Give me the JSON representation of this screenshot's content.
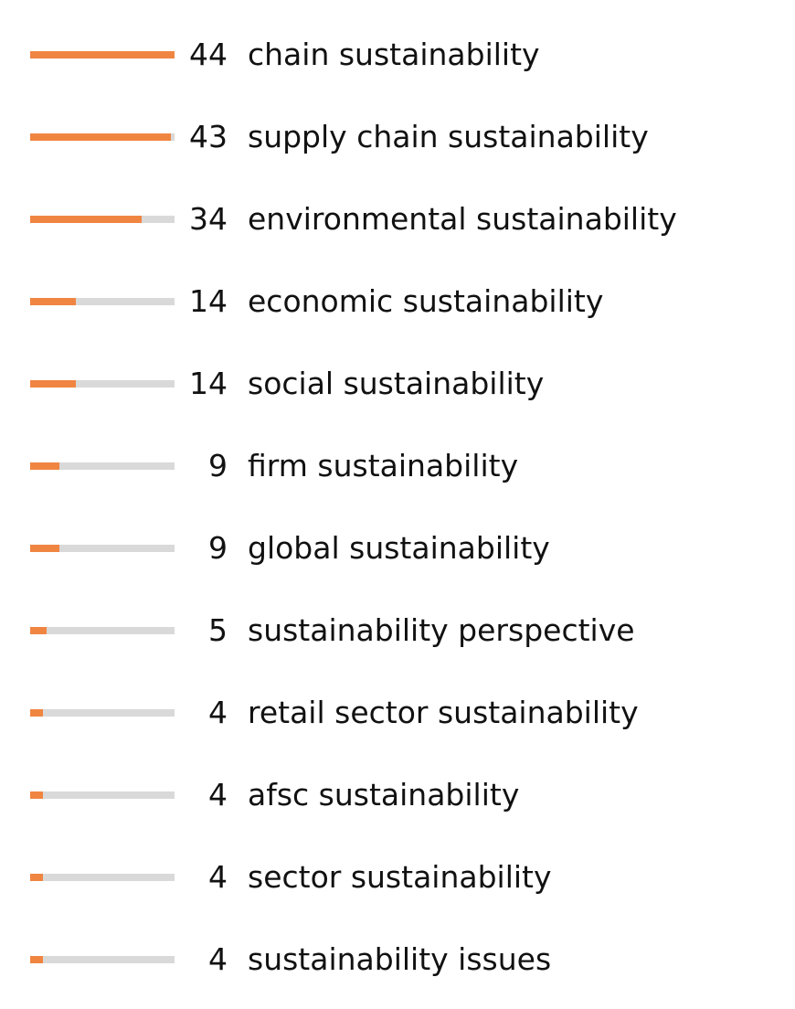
{
  "chart_data": {
    "type": "bar",
    "orientation": "horizontal",
    "grid": false,
    "legend": "none",
    "bar_color": "#f08541",
    "track_color": "#d9d9d9",
    "categories": [
      "chain sustainability",
      "supply chain sustainability",
      "environmental sustainability",
      "economic sustainability",
      "social sustainability",
      "firm sustainability",
      "global sustainability",
      "sustainability perspective",
      "retail sector sustainability",
      "afsc sustainability",
      "sector sustainability",
      "sustainability issues"
    ],
    "values": [
      44,
      43,
      34,
      14,
      14,
      9,
      9,
      5,
      4,
      4,
      4,
      4
    ]
  }
}
